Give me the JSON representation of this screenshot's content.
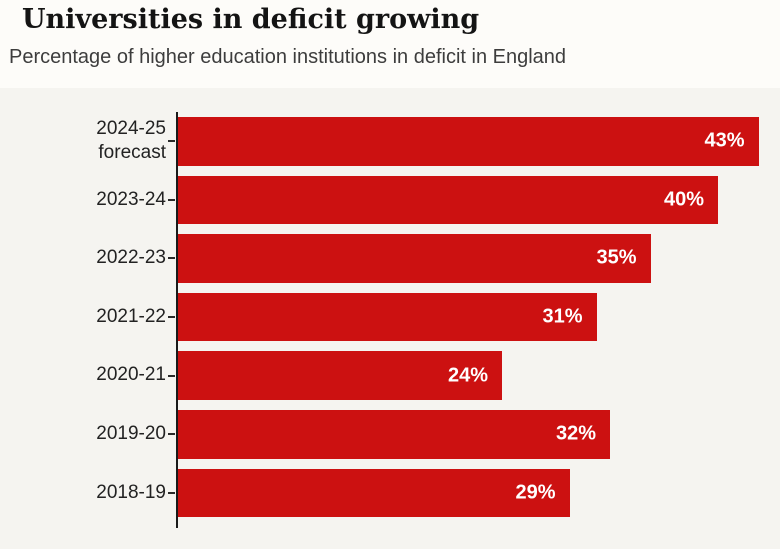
{
  "header": {
    "title": "Universities in deficit growing",
    "subtitle": "Percentage of higher education institutions in deficit in England"
  },
  "chart_data": {
    "type": "bar",
    "orientation": "horizontal",
    "title": "Universities in deficit growing",
    "subtitle": "Percentage of higher education institutions in deficit in England",
    "categories": [
      "2024-25\nforecast",
      "2023-24",
      "2022-23",
      "2021-22",
      "2020-21",
      "2019-20",
      "2018-19"
    ],
    "values": [
      43,
      40,
      35,
      31,
      24,
      32,
      29
    ],
    "value_suffix": "%",
    "value_labels": [
      "43%",
      "40%",
      "35%",
      "31%",
      "24%",
      "32%",
      "29%"
    ],
    "xlabel": "",
    "ylabel": "",
    "xlim": [
      0,
      44
    ],
    "grid": false,
    "legend": false,
    "colors": {
      "bar": "#cc1111",
      "value_label": "#ffffff",
      "axis": "#1a1a1a",
      "category_label": "#222222",
      "title": "#141414",
      "subtitle": "#3d3d3d",
      "panel_background": "#f5f4f0",
      "page_background": "#fdfcf9"
    }
  }
}
